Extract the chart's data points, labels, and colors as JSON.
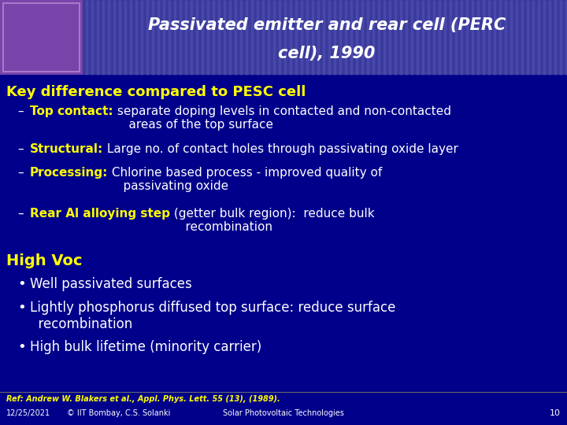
{
  "bg_color": "#00008B",
  "header_bg": "#3A3A9A",
  "stripe_color": "#5555BB",
  "title_line1": "Passivated emitter and rear cell (PERC",
  "title_line2": "cell), 1990",
  "title_color": "#FFFFFF",
  "yellow": "#FFFF00",
  "white": "#FFFFFF",
  "logo_color": "#7744AA",
  "section1": "Key difference compared to PESC cell",
  "b1_bold": "Top contact:",
  "b1_rest": " separate doping levels in contacted and non-contacted\n    areas of the top surface",
  "b2_bold": "Structural:",
  "b2_rest": " Large no. of contact holes through passivating oxide layer",
  "b3_bold": "Processing:",
  "b3_rest": " Chlorine based process - improved quality of\n    passivating oxide",
  "b4_bold": "Rear Al alloying step",
  "b4_rest": " (getter bulk region):  reduce bulk\n    recombination",
  "section2": "High Voc",
  "c1": "Well passivated surfaces",
  "c2": "Lightly phosphorus diffused top surface: reduce surface\n  recombination",
  "c3": "High bulk lifetime (minority carrier)",
  "footer_ref": "Ref: Andrew W. Blakers et al., Appl. Phys. Lett. 55 (13), (1989).",
  "footer_date": "12/25/2021",
  "footer_copy": "© IIT Bombay, C.S. Solanki",
  "footer_center": "Solar Photovoltaic Technologies",
  "footer_num": "10"
}
